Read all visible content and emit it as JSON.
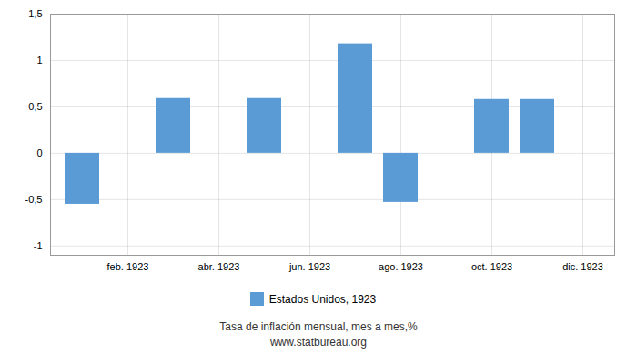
{
  "chart_data": {
    "type": "bar",
    "categories": [
      null,
      "feb. 1923",
      null,
      "abr. 1923",
      null,
      "jun. 1923",
      null,
      "ago. 1923",
      null,
      "oct. 1923",
      null,
      "dic. 1923"
    ],
    "series": [
      {
        "name": "Estados Unidos, 1923",
        "color": "#5b9bd5",
        "values": [
          -0.55,
          0.0,
          0.59,
          0.0,
          0.59,
          0.0,
          1.18,
          -0.53,
          0.0,
          0.58,
          0.58,
          0.0
        ]
      }
    ],
    "ylim": [
      -1.1,
      1.5
    ],
    "yticks": [
      -1,
      {
        "value": -0.5,
        "label": "-0,5"
      },
      0,
      {
        "value": 0.5,
        "label": "0,5"
      },
      1,
      {
        "value": 1.5,
        "label": "1,5"
      }
    ],
    "grid": true,
    "legend": "bottom",
    "annotations": [
      "Tasa de inflación mensual, mes a mes,%",
      "www.statbureau.org"
    ]
  }
}
